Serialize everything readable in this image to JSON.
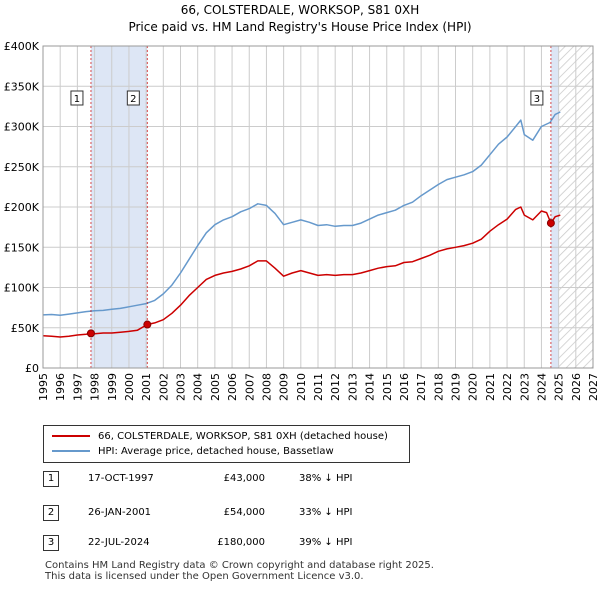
{
  "chart_title": {
    "line1": "66, COLSTERDALE, WORKSOP, S81 0XH",
    "line2": "Price paid vs. HM Land Registry's House Price Index (HPI)"
  },
  "chart_data": {
    "type": "line",
    "ylim": [
      0,
      400000
    ],
    "xlim": [
      1995,
      2027
    ],
    "y_ticks": [
      "£0",
      "£50K",
      "£100K",
      "£150K",
      "£200K",
      "£250K",
      "£300K",
      "£350K",
      "£400K"
    ],
    "x_ticks": [
      "1995",
      "1996",
      "1997",
      "1998",
      "1999",
      "2000",
      "2001",
      "2002",
      "2003",
      "2004",
      "2005",
      "2006",
      "2007",
      "2008",
      "2009",
      "2010",
      "2011",
      "2012",
      "2013",
      "2014",
      "2015",
      "2016",
      "2017",
      "2018",
      "2019",
      "2020",
      "2021",
      "2022",
      "2023",
      "2024",
      "2025",
      "2026",
      "2027"
    ],
    "grid": true,
    "future_hatch_from": 2025.0,
    "series": [
      {
        "name": "66, COLSTERDALE, WORKSOP, S81 0XH (detached house)",
        "color": "#cc0000",
        "points": [
          [
            1995.0,
            40000
          ],
          [
            1995.5,
            39500
          ],
          [
            1996.0,
            38500
          ],
          [
            1996.5,
            39500
          ],
          [
            1997.0,
            41000
          ],
          [
            1997.5,
            42000
          ],
          [
            1997.79,
            43000
          ],
          [
            1998.0,
            42500
          ],
          [
            1998.5,
            43500
          ],
          [
            1999.0,
            43500
          ],
          [
            1999.5,
            44500
          ],
          [
            2000.0,
            45500
          ],
          [
            2000.5,
            47000
          ],
          [
            2001.07,
            54000
          ],
          [
            2001.5,
            56000
          ],
          [
            2002.0,
            60000
          ],
          [
            2002.5,
            68000
          ],
          [
            2003.0,
            78000
          ],
          [
            2003.5,
            90000
          ],
          [
            2004.0,
            100000
          ],
          [
            2004.5,
            110000
          ],
          [
            2005.0,
            115000
          ],
          [
            2005.5,
            118000
          ],
          [
            2006.0,
            120000
          ],
          [
            2006.5,
            123000
          ],
          [
            2007.0,
            127000
          ],
          [
            2007.5,
            133000
          ],
          [
            2008.0,
            133000
          ],
          [
            2008.5,
            124000
          ],
          [
            2009.0,
            114000
          ],
          [
            2009.5,
            118000
          ],
          [
            2010.0,
            121000
          ],
          [
            2010.5,
            118000
          ],
          [
            2011.0,
            115000
          ],
          [
            2011.5,
            116000
          ],
          [
            2012.0,
            115000
          ],
          [
            2012.5,
            116000
          ],
          [
            2013.0,
            116000
          ],
          [
            2013.5,
            118000
          ],
          [
            2014.0,
            121000
          ],
          [
            2014.5,
            124000
          ],
          [
            2015.0,
            126000
          ],
          [
            2015.5,
            127000
          ],
          [
            2016.0,
            131000
          ],
          [
            2016.5,
            132000
          ],
          [
            2017.0,
            136000
          ],
          [
            2017.5,
            140000
          ],
          [
            2018.0,
            145000
          ],
          [
            2018.5,
            148000
          ],
          [
            2019.0,
            150000
          ],
          [
            2019.5,
            152000
          ],
          [
            2020.0,
            155000
          ],
          [
            2020.5,
            160000
          ],
          [
            2021.0,
            170000
          ],
          [
            2021.5,
            178000
          ],
          [
            2022.0,
            185000
          ],
          [
            2022.5,
            197000
          ],
          [
            2022.8,
            200000
          ],
          [
            2023.0,
            190000
          ],
          [
            2023.5,
            184000
          ],
          [
            2024.0,
            195000
          ],
          [
            2024.3,
            193000
          ],
          [
            2024.55,
            180000
          ],
          [
            2024.8,
            188000
          ],
          [
            2025.1,
            190000
          ]
        ]
      },
      {
        "name": "HPI: Average price, detached house, Bassetlaw",
        "color": "#6699cc",
        "points": [
          [
            1995.0,
            66000
          ],
          [
            1995.5,
            66500
          ],
          [
            1996.0,
            65500
          ],
          [
            1996.5,
            67000
          ],
          [
            1997.0,
            68500
          ],
          [
            1997.5,
            70000
          ],
          [
            1998.0,
            71000
          ],
          [
            1998.5,
            71500
          ],
          [
            1999.0,
            73000
          ],
          [
            1999.5,
            74000
          ],
          [
            2000.0,
            76000
          ],
          [
            2000.5,
            78000
          ],
          [
            2001.0,
            80000
          ],
          [
            2001.5,
            84000
          ],
          [
            2002.0,
            92000
          ],
          [
            2002.5,
            103000
          ],
          [
            2003.0,
            118000
          ],
          [
            2003.5,
            135000
          ],
          [
            2004.0,
            152000
          ],
          [
            2004.5,
            168000
          ],
          [
            2005.0,
            178000
          ],
          [
            2005.5,
            184000
          ],
          [
            2006.0,
            188000
          ],
          [
            2006.5,
            194000
          ],
          [
            2007.0,
            198000
          ],
          [
            2007.5,
            204000
          ],
          [
            2008.0,
            202000
          ],
          [
            2008.5,
            192000
          ],
          [
            2009.0,
            178000
          ],
          [
            2009.5,
            181000
          ],
          [
            2010.0,
            184000
          ],
          [
            2010.5,
            181000
          ],
          [
            2011.0,
            177000
          ],
          [
            2011.5,
            178000
          ],
          [
            2012.0,
            176000
          ],
          [
            2012.5,
            177000
          ],
          [
            2013.0,
            177000
          ],
          [
            2013.5,
            180000
          ],
          [
            2014.0,
            185000
          ],
          [
            2014.5,
            190000
          ],
          [
            2015.0,
            193000
          ],
          [
            2015.5,
            196000
          ],
          [
            2016.0,
            202000
          ],
          [
            2016.5,
            206000
          ],
          [
            2017.0,
            214000
          ],
          [
            2017.5,
            221000
          ],
          [
            2018.0,
            228000
          ],
          [
            2018.5,
            234000
          ],
          [
            2019.0,
            237000
          ],
          [
            2019.5,
            240000
          ],
          [
            2020.0,
            244000
          ],
          [
            2020.5,
            252000
          ],
          [
            2021.0,
            265000
          ],
          [
            2021.5,
            278000
          ],
          [
            2022.0,
            287000
          ],
          [
            2022.5,
            300000
          ],
          [
            2022.8,
            308000
          ],
          [
            2023.0,
            290000
          ],
          [
            2023.5,
            283000
          ],
          [
            2024.0,
            300000
          ],
          [
            2024.5,
            305000
          ],
          [
            2024.8,
            315000
          ],
          [
            2025.1,
            318000
          ]
        ]
      }
    ],
    "sales": [
      {
        "label": "1",
        "x": 1997.79,
        "y": 43000
      },
      {
        "label": "2",
        "x": 2001.07,
        "y": 54000
      },
      {
        "label": "3",
        "x": 2024.55,
        "y": 180000
      }
    ],
    "colors": {
      "price_line": "#cc0000",
      "hpi_line": "#6699cc",
      "sale_marker_line": "#cc0000",
      "sale_band": "#dde6f5",
      "grid": "#cccccc",
      "plot_border": "#999999"
    }
  },
  "legend": {
    "items": [
      {
        "label": "66, COLSTERDALE, WORKSOP, S81 0XH (detached house)",
        "color": "#cc0000"
      },
      {
        "label": "HPI: Average price, detached house, Bassetlaw",
        "color": "#6699cc"
      }
    ]
  },
  "sales_table": [
    {
      "num": "1",
      "date": "17-OCT-1997",
      "price": "£43,000",
      "hpi": "38% ↓ HPI"
    },
    {
      "num": "2",
      "date": "26-JAN-2001",
      "price": "£54,000",
      "hpi": "33% ↓ HPI"
    },
    {
      "num": "3",
      "date": "22-JUL-2024",
      "price": "£180,000",
      "hpi": "39% ↓ HPI"
    }
  ],
  "footer": {
    "line1": "Contains HM Land Registry data © Crown copyright and database right 2025.",
    "line2": "This data is licensed under the Open Government Licence v3.0."
  }
}
